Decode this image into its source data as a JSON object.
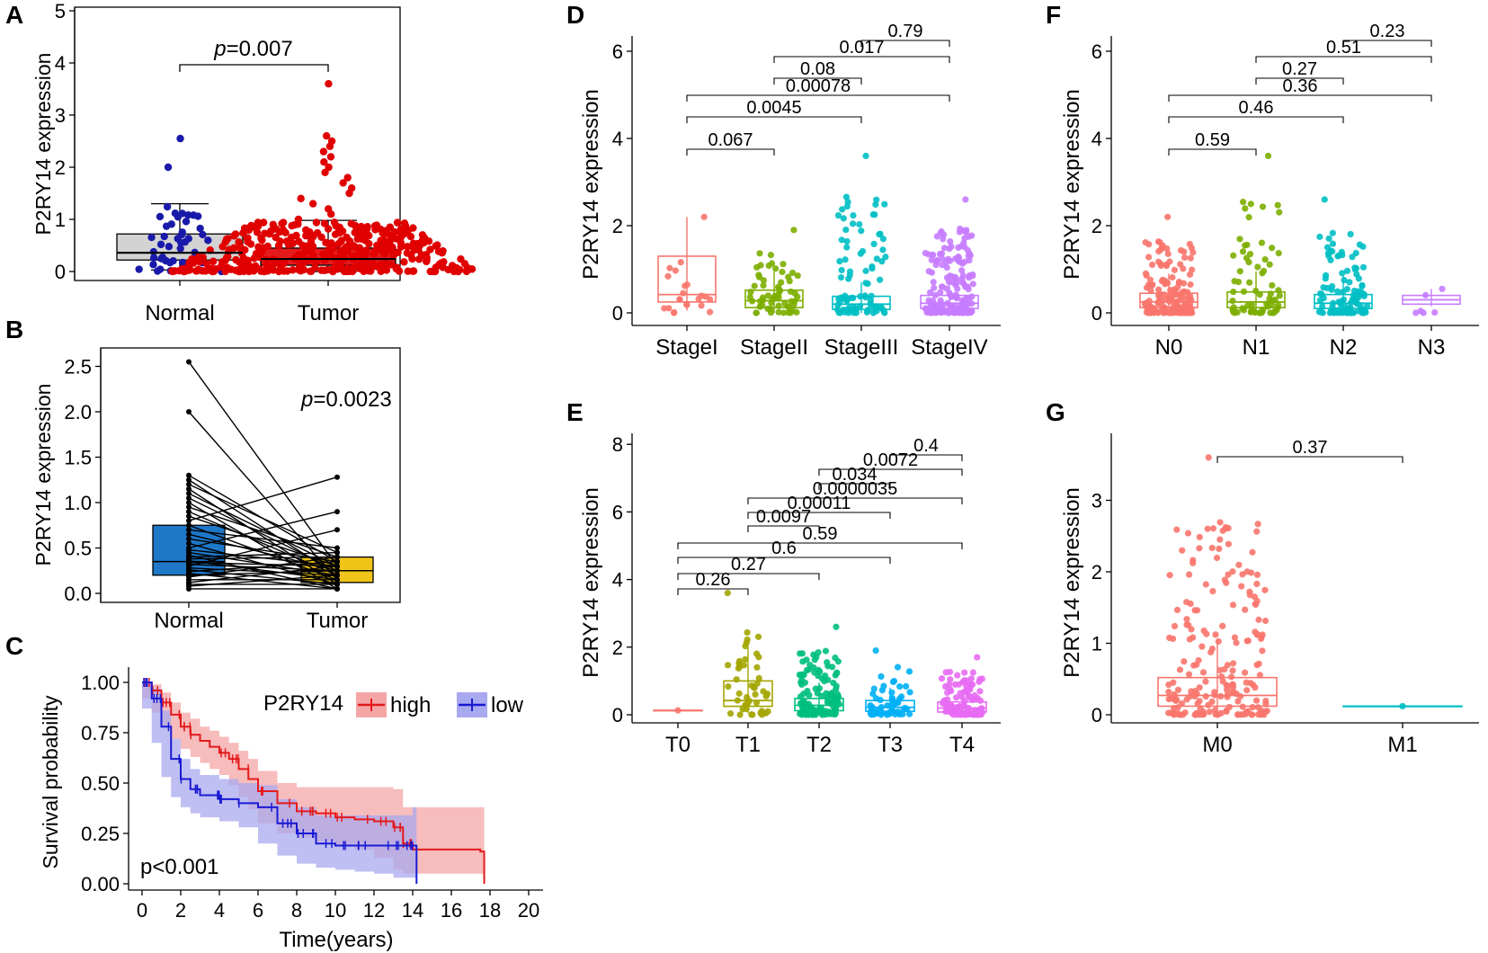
{
  "chart_data": [
    {
      "panel": "A",
      "type": "box-dot",
      "ylabel": "P2RY14 expression",
      "ylim": [
        0,
        5
      ],
      "yticks": [
        0,
        1,
        2,
        3,
        4,
        5
      ],
      "categories": [
        "Normal",
        "Tumor"
      ],
      "box_colors": [
        "#d3d3d3",
        "#e41a1c"
      ],
      "point_colors": [
        "#1a1aaa",
        "#e00000"
      ],
      "boxes": [
        {
          "q1": 0.22,
          "median": 0.36,
          "q3": 0.72,
          "whisker_low": 0.03,
          "whisker_high": 1.3
        },
        {
          "q1": 0.12,
          "median": 0.24,
          "q3": 0.45,
          "whisker_low": 0.0,
          "whisker_high": 0.98
        }
      ],
      "outliers": [
        [
          2.55,
          2.0
        ],
        [
          3.6,
          2.6,
          2.5,
          2.4,
          2.3,
          2.2,
          2.1,
          2.0,
          1.9,
          1.8,
          1.7,
          1.6,
          1.5,
          1.4,
          1.3,
          1.2,
          1.1,
          1.0
        ]
      ],
      "point_counts": [
        45,
        420
      ],
      "comparisons": [
        {
          "a": 0,
          "b": 1,
          "label_prefix": "p",
          "label_value": "=0.007"
        }
      ]
    },
    {
      "panel": "B",
      "type": "paired-box",
      "ylabel": "P2RY14 expression",
      "ylim": [
        0,
        2.6
      ],
      "yticks": [
        "0.0",
        "0.5",
        "1.0",
        "1.5",
        "2.0",
        "2.5"
      ],
      "categories": [
        "Normal",
        "Tumor"
      ],
      "box_colors": [
        "#1f77c8",
        "#f0c419"
      ],
      "boxes": [
        {
          "q1": 0.2,
          "median": 0.35,
          "q3": 0.75
        },
        {
          "q1": 0.12,
          "median": 0.25,
          "q3": 0.4
        }
      ],
      "pairs_normal": [
        2.55,
        2.0,
        1.3,
        1.25,
        1.2,
        1.15,
        1.1,
        1.05,
        1.0,
        0.95,
        0.9,
        0.85,
        0.8,
        0.75,
        0.7,
        0.65,
        0.6,
        0.55,
        0.5,
        0.48,
        0.45,
        0.42,
        0.4,
        0.38,
        0.36,
        0.34,
        0.32,
        0.3,
        0.28,
        0.26,
        0.24,
        0.22,
        0.2,
        0.18,
        0.15,
        0.12,
        0.1,
        0.08,
        0.05
      ],
      "pairs_tumor": [
        0.3,
        0.15,
        0.35,
        0.2,
        0.45,
        0.1,
        0.3,
        0.25,
        0.05,
        0.4,
        0.2,
        0.3,
        1.28,
        0.15,
        0.5,
        0.25,
        0.35,
        0.1,
        0.9,
        0.3,
        0.2,
        0.05,
        0.45,
        0.4,
        0.15,
        0.3,
        0.25,
        0.7,
        0.2,
        0.1,
        0.35,
        0.05,
        0.25,
        0.4,
        0.15,
        0.3,
        0.1,
        0.2,
        0.05
      ],
      "p_prefix": "p",
      "p_value": "=0.0023"
    },
    {
      "panel": "C",
      "type": "line",
      "subtype": "kaplan-meier",
      "xlabel": "Time(years)",
      "ylabel": "Survival probability",
      "xlim": [
        0,
        20
      ],
      "ylim": [
        0,
        1
      ],
      "xticks": [
        0,
        2,
        4,
        6,
        8,
        10,
        12,
        14,
        16,
        18,
        20
      ],
      "yticks": [
        "0.00",
        "0.25",
        "0.50",
        "0.75",
        "1.00"
      ],
      "legend_title": "P2RY14",
      "series": [
        {
          "name": "high",
          "color": "#e41a1c",
          "band_color": "#f4a6a6",
          "x": [
            0,
            0.5,
            1,
            1.5,
            2,
            2.5,
            3,
            3.5,
            4,
            4.5,
            5,
            5.5,
            6,
            7,
            8,
            9,
            10,
            11,
            12,
            13,
            13.5,
            14,
            17.5,
            17.7
          ],
          "y": [
            1.0,
            0.96,
            0.9,
            0.84,
            0.78,
            0.74,
            0.71,
            0.68,
            0.65,
            0.62,
            0.57,
            0.52,
            0.46,
            0.4,
            0.36,
            0.35,
            0.33,
            0.32,
            0.31,
            0.28,
            0.2,
            0.17,
            0.16,
            0.0
          ],
          "upper": [
            1.0,
            0.99,
            0.95,
            0.9,
            0.85,
            0.82,
            0.78,
            0.76,
            0.73,
            0.7,
            0.66,
            0.62,
            0.56,
            0.5,
            0.48,
            0.48,
            0.48,
            0.48,
            0.48,
            0.47,
            0.38,
            0.38,
            0.38,
            0.38
          ],
          "lower": [
            1.0,
            0.92,
            0.85,
            0.78,
            0.72,
            0.67,
            0.63,
            0.6,
            0.57,
            0.54,
            0.49,
            0.43,
            0.37,
            0.3,
            0.25,
            0.23,
            0.21,
            0.19,
            0.17,
            0.13,
            0.07,
            0.05,
            0.05,
            0.05
          ]
        },
        {
          "name": "low",
          "color": "#1a1ad4",
          "band_color": "#a9a9ef",
          "x": [
            0,
            0.5,
            1,
            1.5,
            2,
            2.5,
            3,
            4,
            5,
            6,
            7,
            8,
            9,
            10,
            11,
            12,
            13,
            14,
            14.2
          ],
          "y": [
            1.0,
            0.92,
            0.78,
            0.62,
            0.52,
            0.47,
            0.44,
            0.42,
            0.4,
            0.38,
            0.3,
            0.25,
            0.2,
            0.19,
            0.19,
            0.19,
            0.19,
            0.19,
            0.0
          ],
          "upper": [
            1.0,
            0.97,
            0.86,
            0.72,
            0.62,
            0.57,
            0.54,
            0.52,
            0.5,
            0.49,
            0.42,
            0.38,
            0.34,
            0.34,
            0.34,
            0.34,
            0.34,
            0.38,
            0.38
          ],
          "lower": [
            1.0,
            0.87,
            0.7,
            0.53,
            0.43,
            0.38,
            0.35,
            0.33,
            0.31,
            0.28,
            0.2,
            0.14,
            0.1,
            0.08,
            0.07,
            0.06,
            0.05,
            0.03,
            0.03
          ]
        }
      ],
      "annotation": "p<0.001"
    },
    {
      "panel": "D",
      "type": "box-jitter",
      "ylabel": "P2RY14 expression",
      "ylim": [
        0,
        6
      ],
      "yticks": [
        0,
        2,
        4,
        6
      ],
      "categories": [
        "StageI",
        "StageII",
        "StageIII",
        "StageIV"
      ],
      "colors": [
        "#f8766d",
        "#7cae00",
        "#00bfc4",
        "#c77cff"
      ],
      "boxes": [
        {
          "q1": 0.25,
          "median": 0.42,
          "q3": 1.3,
          "whisker_low": 0.05,
          "whisker_high": 2.2
        },
        {
          "q1": 0.12,
          "median": 0.28,
          "q3": 0.52,
          "whisker_low": 0.0,
          "whisker_high": 0.95
        },
        {
          "q1": 0.08,
          "median": 0.2,
          "q3": 0.38,
          "whisker_low": 0.0,
          "whisker_high": 0.7
        },
        {
          "q1": 0.1,
          "median": 0.22,
          "q3": 0.4,
          "whisker_low": 0.0,
          "whisker_high": 0.75
        }
      ],
      "point_counts": [
        22,
        60,
        90,
        170
      ],
      "max_points": [
        2.2,
        1.9,
        3.6,
        2.6
      ],
      "comparisons": [
        {
          "a": 0,
          "b": 1,
          "label": "0.067"
        },
        {
          "a": 0,
          "b": 2,
          "label": "0.0045"
        },
        {
          "a": 0,
          "b": 3,
          "label": "0.00078"
        },
        {
          "a": 1,
          "b": 2,
          "label": "0.08"
        },
        {
          "a": 1,
          "b": 3,
          "label": "0.017"
        },
        {
          "a": 2,
          "b": 3,
          "label": "0.79"
        }
      ]
    },
    {
      "panel": "E",
      "type": "box-jitter",
      "ylabel": "P2RY14 expression",
      "ylim": [
        0,
        8
      ],
      "yticks": [
        0,
        2,
        4,
        6,
        8
      ],
      "categories": [
        "T0",
        "T1",
        "T2",
        "T3",
        "T4"
      ],
      "colors": [
        "#f8766d",
        "#a3a500",
        "#00bf7d",
        "#00b0f6",
        "#e76bf3"
      ],
      "boxes": [
        {
          "q1": 0.13,
          "median": 0.13,
          "q3": 0.13,
          "whisker_low": 0.13,
          "whisker_high": 0.13
        },
        {
          "q1": 0.25,
          "median": 0.42,
          "q3": 1.0,
          "whisker_low": 0.05,
          "whisker_high": 2.0
        },
        {
          "q1": 0.12,
          "median": 0.28,
          "q3": 0.48,
          "whisker_low": 0.0,
          "whisker_high": 0.95
        },
        {
          "q1": 0.1,
          "median": 0.22,
          "q3": 0.42,
          "whisker_low": 0.0,
          "whisker_high": 0.8
        },
        {
          "q1": 0.08,
          "median": 0.2,
          "q3": 0.38,
          "whisker_low": 0.0,
          "whisker_high": 0.75
        }
      ],
      "point_counts": [
        1,
        45,
        130,
        60,
        110
      ],
      "max_points": [
        0.13,
        3.6,
        2.6,
        1.9,
        1.7
      ],
      "comparisons": [
        {
          "a": 0,
          "b": 1,
          "label": "0.26"
        },
        {
          "a": 0,
          "b": 2,
          "label": "0.27"
        },
        {
          "a": 0,
          "b": 3,
          "label": "0.6"
        },
        {
          "a": 0,
          "b": 4,
          "label": "0.59"
        },
        {
          "a": 1,
          "b": 2,
          "label": "0.0097"
        },
        {
          "a": 1,
          "b": 3,
          "label": "0.00011"
        },
        {
          "a": 1,
          "b": 4,
          "label": "0.0000035"
        },
        {
          "a": 2,
          "b": 3,
          "label": "0.034"
        },
        {
          "a": 2,
          "b": 4,
          "label": "0.0072"
        },
        {
          "a": 3,
          "b": 4,
          "label": "0.4"
        }
      ]
    },
    {
      "panel": "F",
      "type": "box-jitter",
      "ylabel": "P2RY14 expression",
      "ylim": [
        0,
        6
      ],
      "yticks": [
        0,
        2,
        4,
        6
      ],
      "categories": [
        "N0",
        "N1",
        "N2",
        "N3"
      ],
      "colors": [
        "#f8766d",
        "#7cae00",
        "#00bfc4",
        "#c77cff"
      ],
      "boxes": [
        {
          "q1": 0.12,
          "median": 0.25,
          "q3": 0.45,
          "whisker_low": 0.0,
          "whisker_high": 0.9
        },
        {
          "q1": 0.12,
          "median": 0.25,
          "q3": 0.48,
          "whisker_low": 0.0,
          "whisker_high": 0.95
        },
        {
          "q1": 0.1,
          "median": 0.22,
          "q3": 0.42,
          "whisker_low": 0.0,
          "whisker_high": 0.85
        },
        {
          "q1": 0.2,
          "median": 0.3,
          "q3": 0.4,
          "whisker_low": 0.15,
          "whisker_high": 0.55
        }
      ],
      "point_counts": [
        170,
        70,
        110,
        6
      ],
      "max_points": [
        2.2,
        3.6,
        2.6,
        0.55
      ],
      "comparisons": [
        {
          "a": 0,
          "b": 1,
          "label": "0.59"
        },
        {
          "a": 0,
          "b": 2,
          "label": "0.46"
        },
        {
          "a": 0,
          "b": 3,
          "label": "0.36"
        },
        {
          "a": 1,
          "b": 2,
          "label": "0.27"
        },
        {
          "a": 1,
          "b": 3,
          "label": "0.51"
        },
        {
          "a": 2,
          "b": 3,
          "label": "0.23"
        }
      ]
    },
    {
      "panel": "G",
      "type": "box-jitter",
      "ylabel": "P2RY14 expression",
      "ylim": [
        0,
        3.9
      ],
      "yticks": [
        0,
        1,
        2,
        3
      ],
      "categories": [
        "M0",
        "M1"
      ],
      "colors": [
        "#f8766d",
        "#00bfc4"
      ],
      "boxes": [
        {
          "q1": 0.12,
          "median": 0.27,
          "q3": 0.52,
          "whisker_low": 0.0,
          "whisker_high": 1.05
        },
        {
          "q1": 0.12,
          "median": 0.12,
          "q3": 0.12,
          "whisker_low": 0.12,
          "whisker_high": 0.12
        }
      ],
      "point_counts": [
        200,
        1
      ],
      "max_points": [
        3.6,
        0.12
      ],
      "comparisons": [
        {
          "a": 0,
          "b": 1,
          "label": "0.37"
        }
      ]
    }
  ]
}
